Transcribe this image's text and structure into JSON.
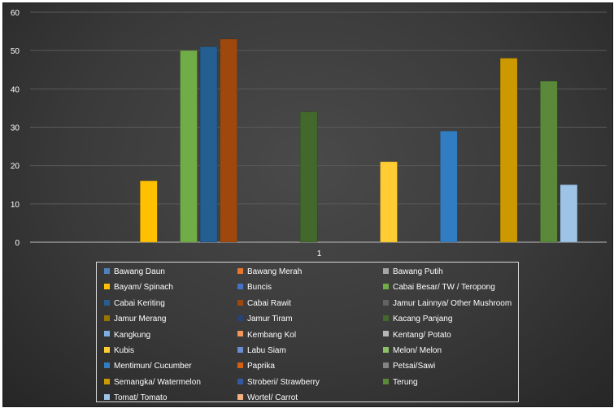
{
  "chart_data": {
    "type": "bar",
    "categories": [
      "1"
    ],
    "ylim": [
      0,
      60
    ],
    "yticks": [
      0,
      10,
      20,
      30,
      40,
      50,
      60
    ],
    "grid": true,
    "legend_position": "bottom",
    "series": [
      {
        "name": "Bawang Daun",
        "values": [
          0
        ],
        "color": "#4f81bd"
      },
      {
        "name": "Bawang Merah",
        "values": [
          0
        ],
        "color": "#e9762f"
      },
      {
        "name": "Bawang Putih",
        "values": [
          0
        ],
        "color": "#a5a5a5"
      },
      {
        "name": "Bayam/ Spinach",
        "values": [
          16
        ],
        "color": "#ffc000"
      },
      {
        "name": "Buncis",
        "values": [
          0
        ],
        "color": "#4472c4"
      },
      {
        "name": "Cabai Besar/ TW / Teropong",
        "values": [
          50
        ],
        "color": "#70ad47"
      },
      {
        "name": "Cabai Keriting",
        "values": [
          51
        ],
        "color": "#255e91"
      },
      {
        "name": "Cabai Rawit",
        "values": [
          53
        ],
        "color": "#9e480e"
      },
      {
        "name": "Jamur Lainnya/ Other Mushroom",
        "values": [
          0
        ],
        "color": "#636363"
      },
      {
        "name": "Jamur Merang",
        "values": [
          0
        ],
        "color": "#997300"
      },
      {
        "name": "Jamur Tiram",
        "values": [
          0
        ],
        "color": "#264478"
      },
      {
        "name": "Kacang Panjang",
        "values": [
          34
        ],
        "color": "#43682b"
      },
      {
        "name": "Kangkung",
        "values": [
          0
        ],
        "color": "#7cafdd"
      },
      {
        "name": "Kembang Kol",
        "values": [
          0
        ],
        "color": "#f1975a"
      },
      {
        "name": "Kentang/ Potato",
        "values": [
          0
        ],
        "color": "#b7b7b7"
      },
      {
        "name": "Kubis",
        "values": [
          21
        ],
        "color": "#ffcd33"
      },
      {
        "name": "Labu Siam",
        "values": [
          0
        ],
        "color": "#698ed0"
      },
      {
        "name": "Melon/ Melon",
        "values": [
          0
        ],
        "color": "#8cc168"
      },
      {
        "name": "Mentimun/ Cucumber",
        "values": [
          29
        ],
        "color": "#327dc2"
      },
      {
        "name": "Paprika",
        "values": [
          0
        ],
        "color": "#d26012"
      },
      {
        "name": "Petsai/Sawi",
        "values": [
          0
        ],
        "color": "#848484"
      },
      {
        "name": "Semangka/ Watermelon",
        "values": [
          48
        ],
        "color": "#cc9a00"
      },
      {
        "name": "Stroberi/ Strawberry",
        "values": [
          0
        ],
        "color": "#335aa1"
      },
      {
        "name": "Terung",
        "values": [
          42
        ],
        "color": "#5a8a39"
      },
      {
        "name": "Tomat/ Tomato",
        "values": [
          15
        ],
        "color": "#9dc3e6"
      },
      {
        "name": "Wortel/ Carrot",
        "values": [
          0
        ],
        "color": "#f4b183"
      }
    ]
  }
}
